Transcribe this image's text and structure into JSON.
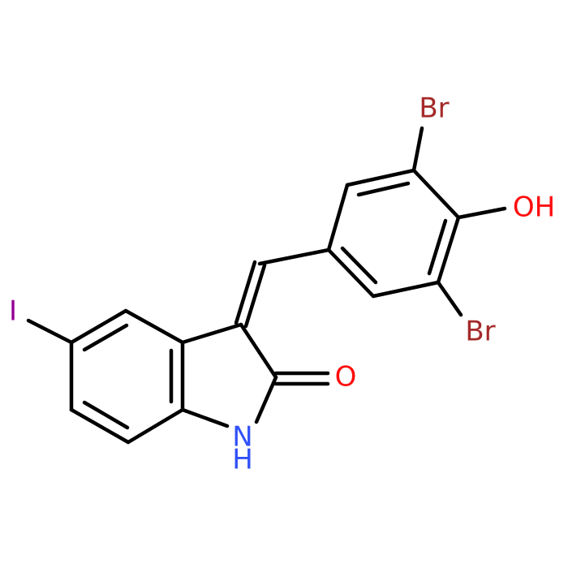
{
  "atoms": [
    {
      "label": "Br"
    },
    {
      "label": "OH"
    },
    {
      "label": "Br"
    },
    {
      "label": "I"
    },
    {
      "label": "O"
    },
    {
      "label": "N"
    },
    {
      "label": "H"
    }
  ]
}
